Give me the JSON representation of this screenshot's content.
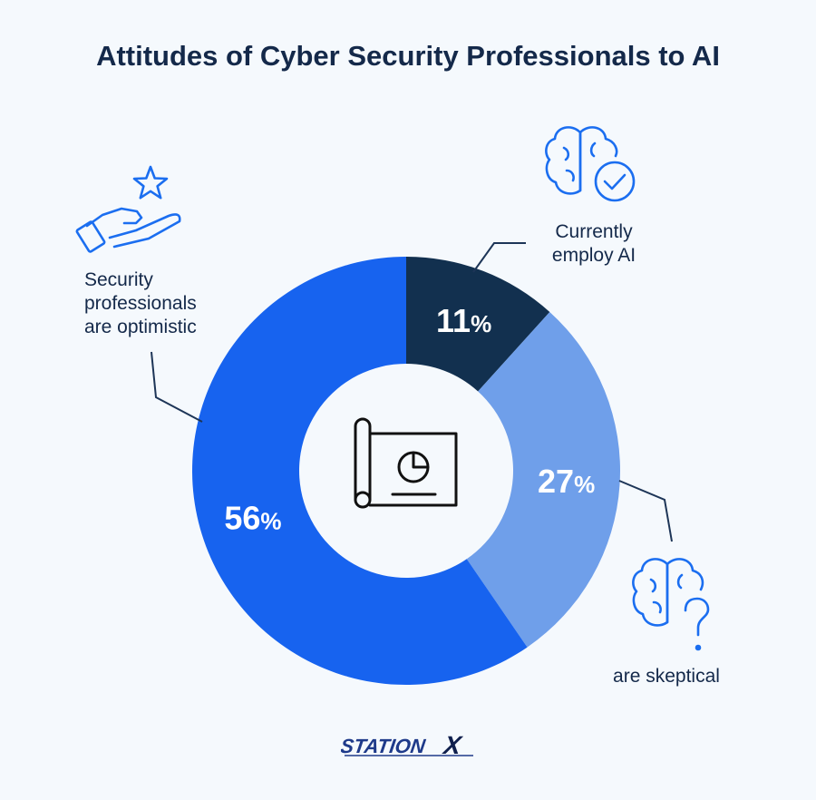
{
  "title": "Attitudes of Cyber Security Professionals to AI",
  "chart_data": {
    "type": "pie",
    "variant": "donut",
    "slices": [
      {
        "label": "Currently employ AI",
        "value": 11,
        "display": "11%",
        "color": "#12304f"
      },
      {
        "label": "are skeptical",
        "value": 27,
        "display": "27%",
        "color": "#6f9fea"
      },
      {
        "label": "Security professionals are optimistic",
        "value": 56,
        "display": "56%",
        "color": "#1763ef"
      }
    ]
  },
  "annotations": {
    "optimistic": [
      "Security",
      "professionals",
      "are optimistic"
    ],
    "employ": [
      "Currently",
      "employ AI"
    ],
    "skeptical": [
      "are skeptical"
    ]
  },
  "icons": {
    "optimistic": "hand-star-icon",
    "employ": "brain-check-icon",
    "skeptical": "brain-question-icon",
    "center": "blueprint-chart-icon"
  },
  "accent_color": "#1b6ef0",
  "brand": {
    "logo_text": "STATIONX"
  }
}
